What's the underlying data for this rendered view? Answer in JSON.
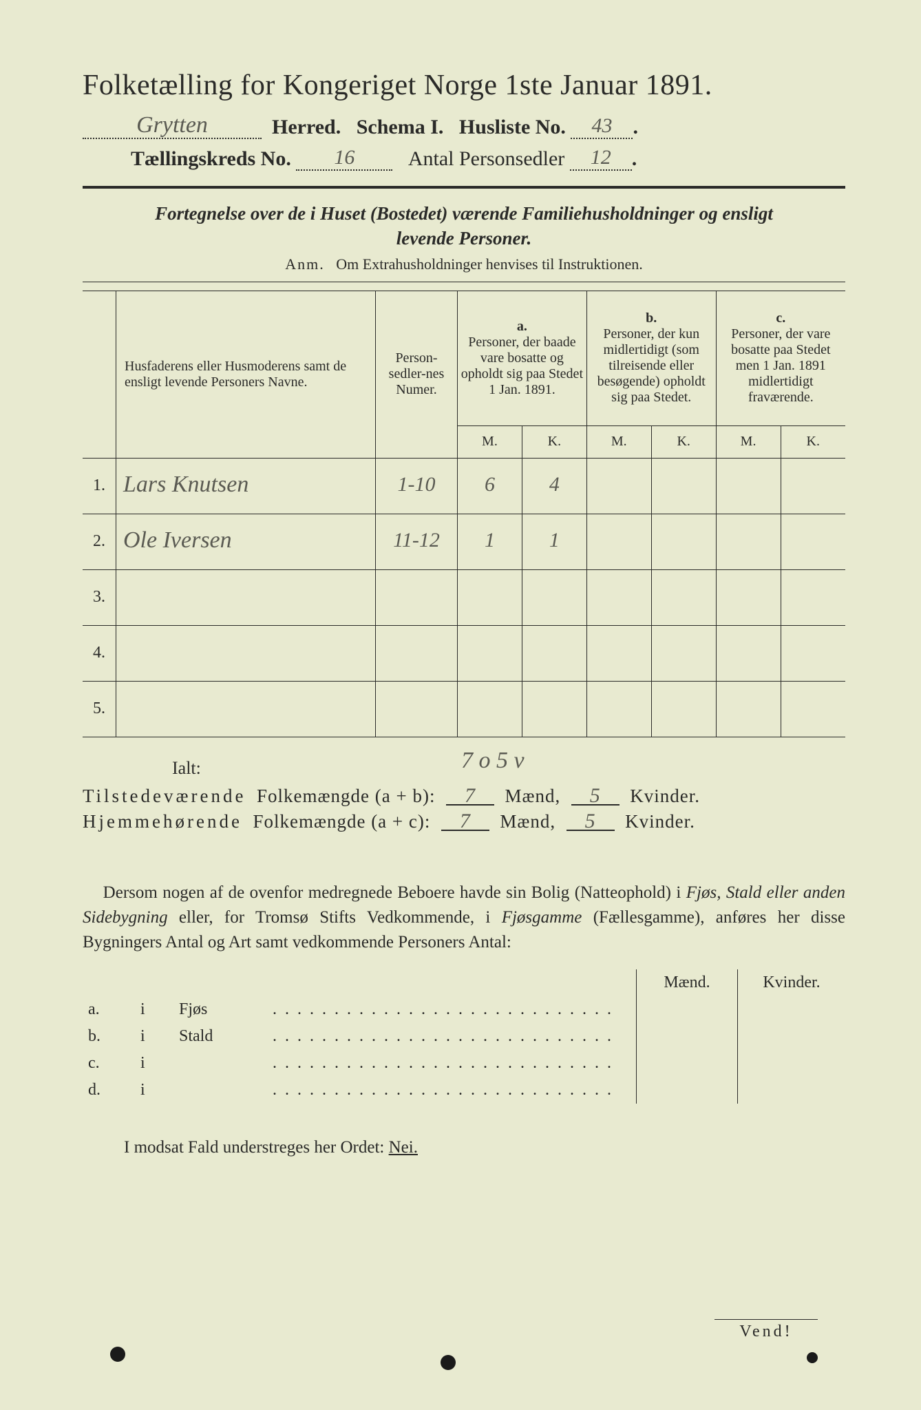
{
  "title": "Folketælling for Kongeriget Norge 1ste Januar 1891.",
  "header": {
    "herred_hand": "Grytten",
    "herred_label": "Herred.",
    "schema_label": "Schema I.",
    "husliste_label": "Husliste No.",
    "husliste_no_hand": "43",
    "kreds_label": "Tællingskreds No.",
    "kreds_no_hand": "16",
    "antal_label": "Antal Personsedler",
    "antal_hand": "12"
  },
  "subtitle_line1": "Fortegnelse over de i Huset (Bostedet) værende Familiehusholdninger og ensligt",
  "subtitle_line2": "levende Personer.",
  "anm_prefix": "Anm.",
  "anm_text": "Om Extrahusholdninger henvises til Instruktionen.",
  "table": {
    "col_name": "Husfaderens eller Husmoderens samt de ensligt levende Personers Navne.",
    "col_num": "Person-sedler-nes Numer.",
    "col_a_label": "a.",
    "col_a": "Personer, der baade vare bosatte og opholdt sig paa Stedet 1 Jan. 1891.",
    "col_b_label": "b.",
    "col_b": "Personer, der kun midlertidigt (som tilreisende eller besøgende) opholdt sig paa Stedet.",
    "col_c_label": "c.",
    "col_c": "Personer, der vare bosatte paa Stedet men 1 Jan. 1891 midlertidigt fraværende.",
    "m": "M.",
    "k": "K.",
    "rows": [
      {
        "n": "1.",
        "name": "Lars Knutsen",
        "num": "1-10",
        "am": "6",
        "ak": "4",
        "bm": "",
        "bk": "",
        "cm": "",
        "ck": ""
      },
      {
        "n": "2.",
        "name": "Ole Iversen",
        "num": "11-12",
        "am": "1",
        "ak": "1",
        "bm": "",
        "bk": "",
        "cm": "",
        "ck": ""
      },
      {
        "n": "3.",
        "name": "",
        "num": "",
        "am": "",
        "ak": "",
        "bm": "",
        "bk": "",
        "cm": "",
        "ck": ""
      },
      {
        "n": "4.",
        "name": "",
        "num": "",
        "am": "",
        "ak": "",
        "bm": "",
        "bk": "",
        "cm": "",
        "ck": ""
      },
      {
        "n": "5.",
        "name": "",
        "num": "",
        "am": "",
        "ak": "",
        "bm": "",
        "bk": "",
        "cm": "",
        "ck": ""
      }
    ]
  },
  "ialt": {
    "label": "Ialt:",
    "hand": "7 o 5 v"
  },
  "summary": {
    "tilst_label": "Tilstedeværende",
    "hjem_label": "Hjemmehørende",
    "folkem": "Folkemængde",
    "ab": "(a + b):",
    "ac": "(a + c):",
    "maend": "Mænd,",
    "kvinder": "Kvinder.",
    "tilst_m": "7",
    "tilst_k": "5",
    "hjem_m": "7",
    "hjem_k": "5"
  },
  "para": "Dersom nogen af de ovenfor medregnede Beboere havde sin Bolig (Natteophold) i Fjøs, Stald eller anden Sidebygning eller, for Tromsø Stifts Vedkommende, i Fjøsgamme (Fællesgamme), anføres her disse Bygningers Antal og Art samt vedkommende Personers Antal:",
  "fjos": {
    "maend": "Mænd.",
    "kvinder": "Kvinder.",
    "rows": [
      {
        "l": "a.",
        "i": "i",
        "label": "Fjøs"
      },
      {
        "l": "b.",
        "i": "i",
        "label": "Stald"
      },
      {
        "l": "c.",
        "i": "i",
        "label": ""
      },
      {
        "l": "d.",
        "i": "i",
        "label": ""
      }
    ]
  },
  "nei_line_pre": "I modsat Fald understreges her Ordet:",
  "nei": "Nei.",
  "vend": "Vend!",
  "colors": {
    "paper": "#e8ead0",
    "ink": "#2a2a28",
    "handwriting": "#5a5a52",
    "background": "#1a1a1a"
  }
}
